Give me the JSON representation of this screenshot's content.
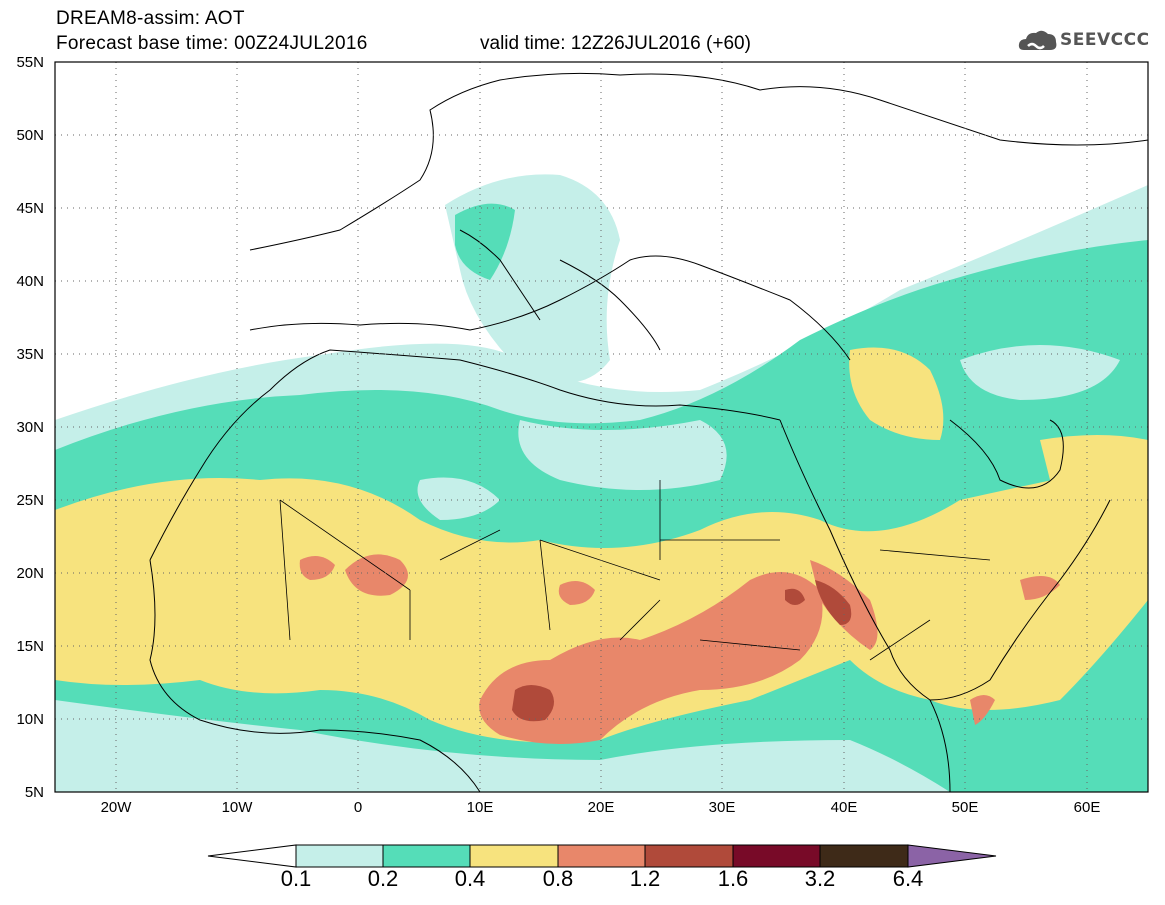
{
  "header": {
    "title": "DREAM8-assim: AOT",
    "base_time": "Forecast base time: 00Z24JUL2016",
    "valid_time": "valid time: 12Z26JUL2016 (+60)",
    "logo": "SEEVCCC"
  },
  "map": {
    "lon_range": [
      -25,
      65
    ],
    "lat_range": [
      5,
      55
    ],
    "lon_ticks": [
      "20W",
      "10W",
      "0",
      "10E",
      "20E",
      "30E",
      "40E",
      "50E",
      "60E"
    ],
    "lat_ticks": [
      "55N",
      "50N",
      "45N",
      "40N",
      "35N",
      "30N",
      "25N",
      "20N",
      "15N",
      "10N",
      "5N"
    ],
    "gridlines": "dotted"
  },
  "colorbar": {
    "levels": [
      "0.1",
      "0.2",
      "0.4",
      "0.8",
      "1.2",
      "1.6",
      "3.2",
      "6.4"
    ],
    "colors": [
      "#ffffff",
      "#c5efe9",
      "#55ddb8",
      "#f7e37e",
      "#e8876a",
      "#b04a3a",
      "#780a28",
      "#3e2a18",
      "#8b63a6"
    ]
  }
}
